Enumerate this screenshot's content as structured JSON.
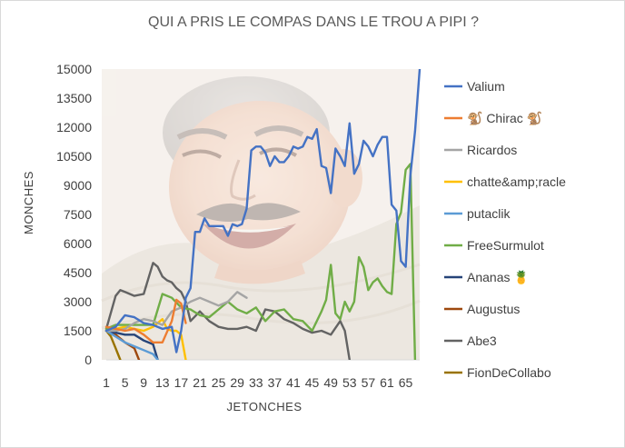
{
  "chart_data": {
    "type": "line",
    "title": "QUI A PRIS LE COMPAS DANS LE TROU A PIPI ?",
    "xlabel": "JETONCHES",
    "ylabel": "MONCHES",
    "ylim": [
      0,
      15000
    ],
    "xlim": [
      1,
      68
    ],
    "y_ticks": [
      "0",
      "1500",
      "3000",
      "4500",
      "6000",
      "7500",
      "9000",
      "10500",
      "12000",
      "13500",
      "15000"
    ],
    "x_ticks": [
      "1",
      "5",
      "9",
      "13",
      "17",
      "21",
      "25",
      "29",
      "33",
      "37",
      "41",
      "45",
      "49",
      "53",
      "57",
      "61",
      "65"
    ],
    "grid": false,
    "legend_position": "right",
    "background": "photo of a laughing man",
    "series": [
      {
        "name": "Valium",
        "color": "#4472c4",
        "x": [
          1,
          3,
          5,
          7,
          9,
          11,
          13,
          15,
          16,
          17,
          18,
          19,
          20,
          21,
          22,
          23,
          24,
          25,
          26,
          27,
          28,
          29,
          30,
          31,
          32,
          33,
          34,
          35,
          36,
          37,
          38,
          39,
          40,
          41,
          42,
          43,
          44,
          45,
          46,
          47,
          48,
          49,
          50,
          51,
          52,
          53,
          54,
          55,
          56,
          57,
          58,
          59,
          60,
          61,
          62,
          63,
          64,
          65,
          66,
          67,
          68
        ],
        "y": [
          1500,
          1700,
          2300,
          2200,
          1900,
          1800,
          1600,
          1700,
          400,
          1500,
          3200,
          3700,
          6600,
          6600,
          7300,
          6900,
          6900,
          6900,
          6900,
          6400,
          7000,
          6900,
          7000,
          7800,
          10800,
          11000,
          11000,
          10700,
          10000,
          10500,
          10200,
          10200,
          10500,
          11000,
          10900,
          11000,
          11500,
          11400,
          11900,
          10000,
          9900,
          8600,
          10900,
          10500,
          10000,
          12200,
          9600,
          10100,
          11300,
          11000,
          10500,
          11100,
          11500,
          11500,
          8000,
          7700,
          5100,
          4800,
          9500,
          11800,
          15000
        ]
      },
      {
        "name": "🐒 Chirac 🐒",
        "color": "#ed7d31",
        "x": [
          1,
          3,
          5,
          7,
          9,
          11,
          13,
          15,
          16,
          17,
          18
        ],
        "y": [
          1700,
          1600,
          1500,
          1600,
          1300,
          900,
          900,
          2000,
          3100,
          2900,
          1900
        ]
      },
      {
        "name": "Ricardos",
        "color": "#a5a5a5",
        "x": [
          1,
          3,
          5,
          7,
          9,
          11,
          13,
          15,
          17,
          19,
          21,
          23,
          25,
          27,
          29,
          31
        ],
        "y": [
          1500,
          1500,
          1600,
          1900,
          2100,
          2000,
          1800,
          2500,
          2700,
          3000,
          3200,
          3000,
          2800,
          3000,
          3500,
          3200
        ]
      },
      {
        "name": "chatte&amp;racle",
        "color": "#ffc000",
        "x": [
          1,
          3,
          5,
          7,
          9,
          11,
          13,
          14,
          15,
          16,
          17,
          18
        ],
        "y": [
          1500,
          1600,
          1700,
          1600,
          1500,
          1700,
          2100,
          1600,
          1500,
          1500,
          1300,
          0
        ]
      },
      {
        "name": "putaclik",
        "color": "#5b9bd5",
        "x": [
          1,
          3,
          5,
          7,
          9,
          11,
          12
        ],
        "y": [
          1500,
          1200,
          900,
          700,
          500,
          300,
          0
        ]
      },
      {
        "name": "FreeSurmulot",
        "color": "#70ad47",
        "x": [
          1,
          3,
          5,
          7,
          9,
          11,
          13,
          15,
          17,
          19,
          21,
          23,
          25,
          27,
          29,
          31,
          33,
          35,
          37,
          39,
          41,
          43,
          45,
          47,
          48,
          49,
          50,
          51,
          52,
          53,
          54,
          55,
          56,
          57,
          58,
          59,
          60,
          61,
          62,
          63,
          64,
          65,
          66,
          67
        ],
        "y": [
          1600,
          1800,
          1800,
          1800,
          1800,
          1800,
          3400,
          3200,
          2700,
          2600,
          2300,
          2200,
          2600,
          3000,
          2600,
          2400,
          2700,
          2000,
          2500,
          2600,
          2100,
          2000,
          1500,
          2500,
          3100,
          4900,
          2400,
          2100,
          3000,
          2500,
          3000,
          5300,
          4800,
          3600,
          4000,
          4200,
          3800,
          3500,
          3400,
          7000,
          7600,
          9800,
          10100,
          0
        ]
      },
      {
        "name": "Ananas 🍍",
        "color": "#264478",
        "x": [
          1,
          2,
          3,
          5,
          7,
          9,
          11,
          12
        ],
        "y": [
          1500,
          1400,
          1400,
          1300,
          1300,
          1000,
          800,
          0
        ]
      },
      {
        "name": "Augustus",
        "color": "#9e480e",
        "x": [
          1,
          3,
          5,
          7,
          8
        ],
        "y": [
          1500,
          1300,
          900,
          600,
          0
        ]
      },
      {
        "name": "Abe3",
        "color": "#636363",
        "x": [
          1,
          3,
          4,
          5,
          7,
          9,
          11,
          12,
          13,
          14,
          15,
          16,
          17,
          18,
          19,
          21,
          23,
          25,
          27,
          29,
          31,
          33,
          35,
          37,
          39,
          41,
          43,
          45,
          47,
          49,
          51,
          52,
          53
        ],
        "y": [
          1600,
          3300,
          3600,
          3500,
          3300,
          3400,
          5000,
          4800,
          4300,
          4100,
          4000,
          3700,
          3500,
          3000,
          2000,
          2500,
          2000,
          1700,
          1600,
          1600,
          1700,
          1500,
          2600,
          2500,
          2100,
          1900,
          1600,
          1400,
          1500,
          1300,
          2000,
          1500,
          0
        ]
      },
      {
        "name": "FionDeCollabo",
        "color": "#997300",
        "x": [
          1,
          2,
          3,
          4
        ],
        "y": [
          1500,
          1200,
          600,
          0
        ]
      }
    ]
  }
}
